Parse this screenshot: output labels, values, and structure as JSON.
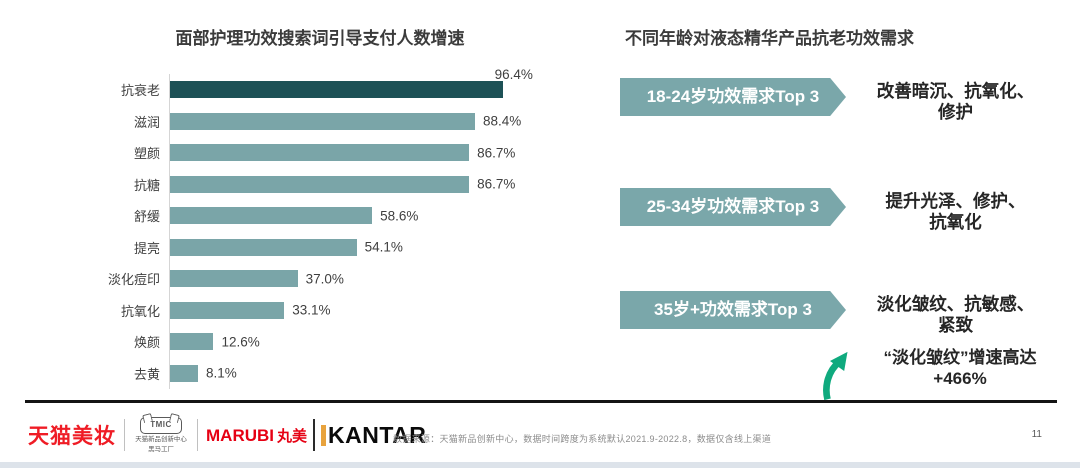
{
  "left_chart": {
    "title": "面部护理功效搜索词引导支付人数增速"
  },
  "chart_data": {
    "type": "bar",
    "orientation": "horizontal",
    "title": "面部护理功效搜索词引导支付人数增速",
    "categories": [
      "抗衰老",
      "滋润",
      "塑颜",
      "抗糖",
      "舒缓",
      "提亮",
      "淡化痘印",
      "抗氧化",
      "焕颜",
      "去黄"
    ],
    "values": [
      96.4,
      88.4,
      86.7,
      86.7,
      58.6,
      54.1,
      37.0,
      33.1,
      12.6,
      8.1
    ],
    "value_labels": [
      "96.4%",
      "88.4%",
      "86.7%",
      "86.7%",
      "58.6%",
      "54.1%",
      "37.0%",
      "33.1%",
      "12.6%",
      "8.1%"
    ],
    "xlim": [
      0,
      100
    ],
    "grid": false,
    "highlight_index": 0,
    "bar_color": "#7aa5a8",
    "highlight_color": "#1d5156"
  },
  "right_panel": {
    "title": "不同年龄对液态精华产品抗老功效需求",
    "groups": [
      {
        "label": "18-24岁功效需求Top 3",
        "needs": "改善暗沉、抗氧化、\n修护"
      },
      {
        "label": "25-34岁功效需求Top 3",
        "needs": "提升光泽、修护、\n抗氧化"
      },
      {
        "label": "35岁+功效需求Top 3",
        "needs": "淡化皱纹、抗敏感、\n紧致"
      }
    ],
    "growth_note": "“淡化皱纹”增速高达\n+466%",
    "growth_arrow_color": "#0faa7e",
    "arrow_box_color": "#7aa7aa"
  },
  "footer": {
    "logos": {
      "tmall_beauty": "天猫美妆",
      "tmic_acronym": "TMIC",
      "tmic_name": "天猫新品创新中心",
      "tmic_sub": "黑马工厂",
      "marubi_en": "MARUBI",
      "marubi_cn": "丸美",
      "kantar": "KANTAR"
    },
    "source": "数据来源：天猫新品创新中心，数据时间跨度为系统默认2021.9-2022.8，数据仅含线上渠道",
    "page_number": "11"
  }
}
